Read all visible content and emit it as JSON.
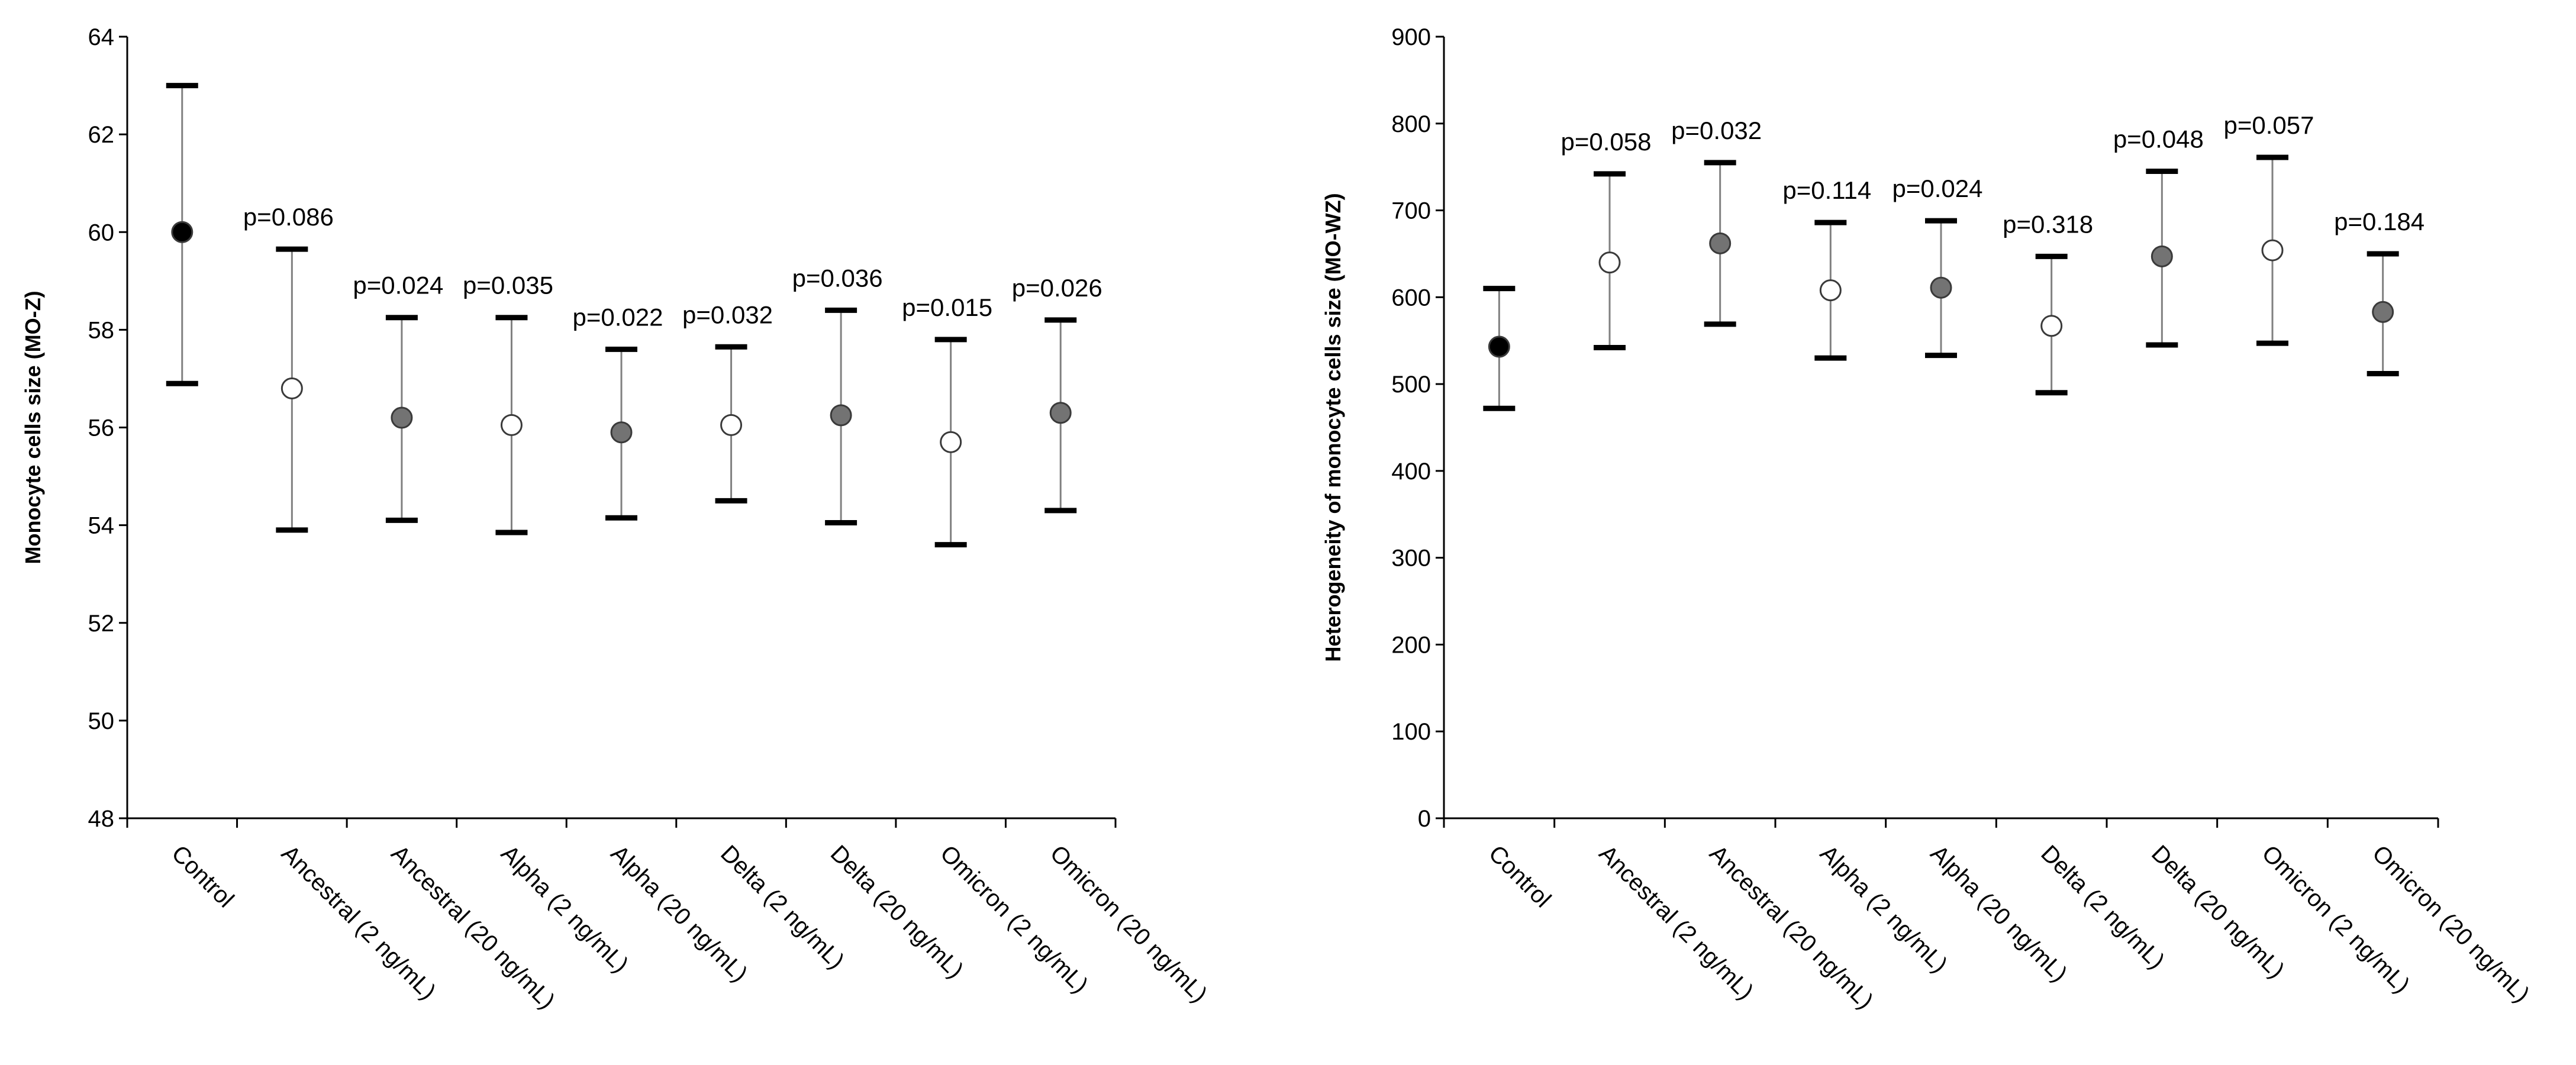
{
  "chart_data": [
    {
      "type": "scatter",
      "subtype": "mean-with-error-bars",
      "title": "",
      "xlabel": "",
      "ylabel": "Monocyte cells size (MO-Z)",
      "ylim": [
        48,
        64
      ],
      "yticks": [
        48,
        50,
        52,
        54,
        56,
        58,
        60,
        62,
        64
      ],
      "categories": [
        "Control",
        "Ancestral (2 ng/mL)",
        "Ancestral (20 ng/mL)",
        "Alpha (2 ng/mL)",
        "Alpha (20 ng/mL)",
        "Delta (2 ng/mL)",
        "Delta (20 ng/mL)",
        "Omicron (2 ng/mL)",
        "Omicron (20 ng/mL)"
      ],
      "means": [
        60.0,
        56.8,
        56.2,
        56.05,
        55.9,
        56.05,
        56.25,
        55.7,
        56.3
      ],
      "lower": [
        56.9,
        53.9,
        54.1,
        53.85,
        54.15,
        54.5,
        54.05,
        53.6,
        54.3
      ],
      "upper": [
        63.0,
        59.65,
        58.25,
        58.25,
        57.6,
        57.65,
        58.4,
        57.8,
        58.2
      ],
      "marker_fill": [
        "black",
        "white",
        "gray",
        "white",
        "gray",
        "white",
        "gray",
        "white",
        "gray"
      ],
      "p_values": [
        "",
        "p=0.086",
        "p=0.024",
        "p=0.035",
        "p=0.022",
        "p=0.032",
        "p=0.036",
        "p=0.015",
        "p=0.026"
      ]
    },
    {
      "type": "scatter",
      "subtype": "mean-with-error-bars",
      "title": "",
      "xlabel": "",
      "ylabel": "Heterogeneity of monocyte cells size (MO-WZ)",
      "ylim": [
        0,
        900
      ],
      "yticks": [
        0,
        100,
        200,
        300,
        400,
        500,
        600,
        700,
        800,
        900
      ],
      "categories": [
        "Control",
        "Ancestral (2 ng/mL)",
        "Ancestral (20 ng/mL)",
        "Alpha (2 ng/mL)",
        "Alpha (20 ng/mL)",
        "Delta (2 ng/mL)",
        "Delta (20 ng/mL)",
        "Omicron (2 ng/mL)",
        "Omicron (20 ng/mL)"
      ],
      "means": [
        543,
        640,
        662,
        608,
        611,
        567,
        647,
        654,
        583
      ],
      "lower": [
        472,
        542,
        569,
        530,
        533,
        490,
        545,
        547,
        512
      ],
      "upper": [
        610,
        742,
        755,
        686,
        688,
        647,
        745,
        761,
        650
      ],
      "marker_fill": [
        "black",
        "white",
        "gray",
        "white",
        "gray",
        "white",
        "gray",
        "white",
        "gray"
      ],
      "p_values": [
        "",
        "p=0.058",
        "p=0.032",
        "p=0.114",
        "p=0.024",
        "p=0.318",
        "p=0.048",
        "p=0.057",
        "p=0.184"
      ]
    }
  ],
  "colors": {
    "black": "#000000",
    "gray": "#737373",
    "white": "#ffffff",
    "axis": "#000000",
    "whisker": "#808080"
  }
}
